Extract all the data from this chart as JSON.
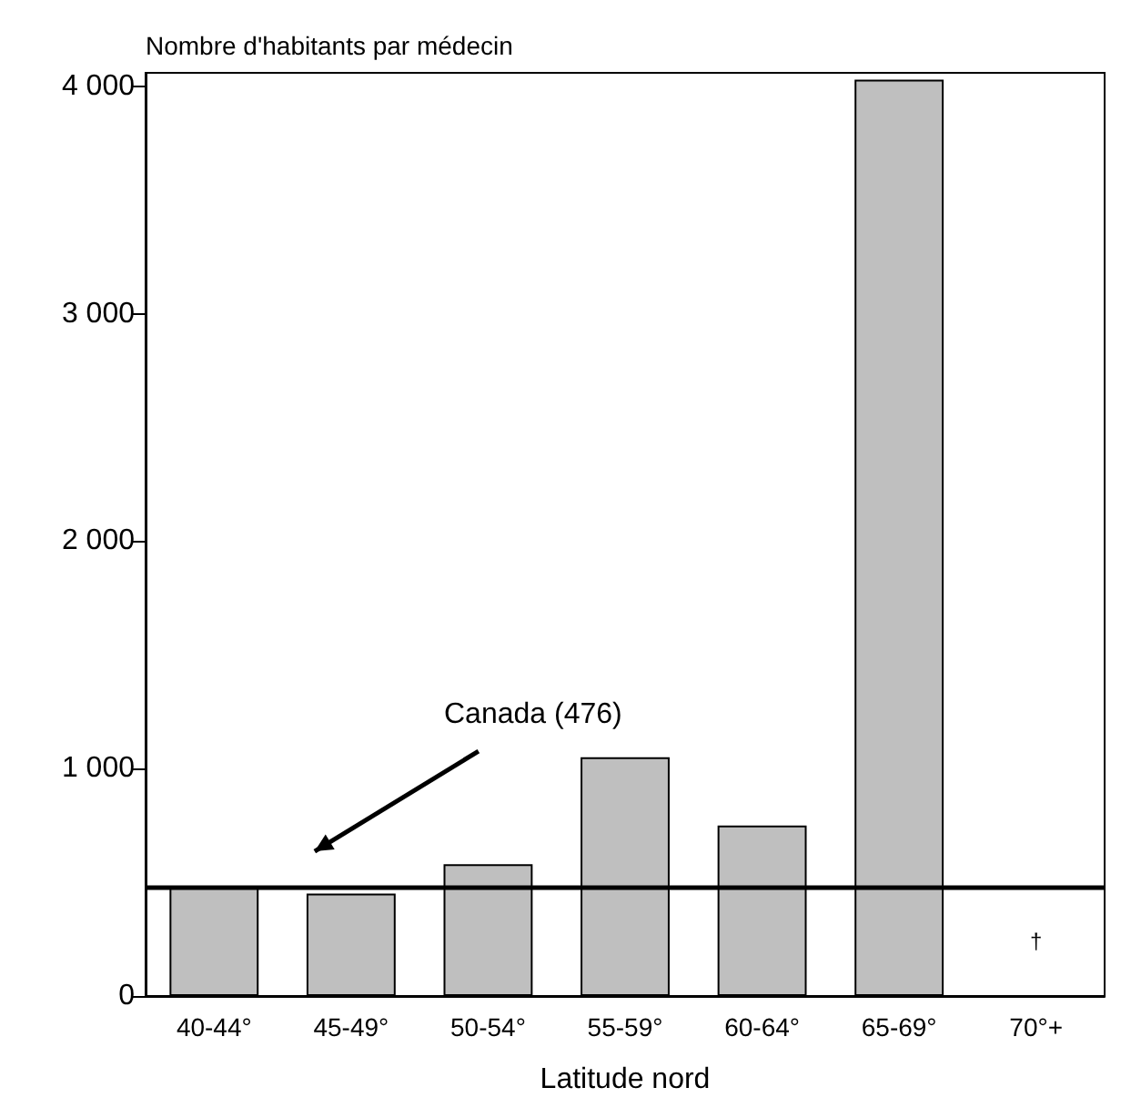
{
  "chart_data": {
    "type": "bar",
    "ylabel": "Nombre d'habitants par médecin",
    "xlabel": "Latitude nord",
    "categories": [
      "40-44°",
      "45-49°",
      "50-54°",
      "55-59°",
      "60-64°",
      "65-69°",
      "70°+"
    ],
    "values": [
      480,
      450,
      580,
      1050,
      750,
      4030,
      null
    ],
    "color": "#bfbfbf",
    "ylim": [
      0,
      4060
    ],
    "yticks": [
      0,
      {
        "value": 1000,
        "label": "1 000"
      },
      {
        "value": 2000,
        "label": "2 000"
      },
      {
        "value": 3000,
        "label": "3 000"
      },
      {
        "value": 4000,
        "label": "4 000"
      }
    ],
    "ref_lines": [
      {
        "axis": "y",
        "value": 476,
        "label": "Canada (476)",
        "color": "#000000"
      }
    ],
    "annotations": [
      "†"
    ],
    "grid": false
  }
}
